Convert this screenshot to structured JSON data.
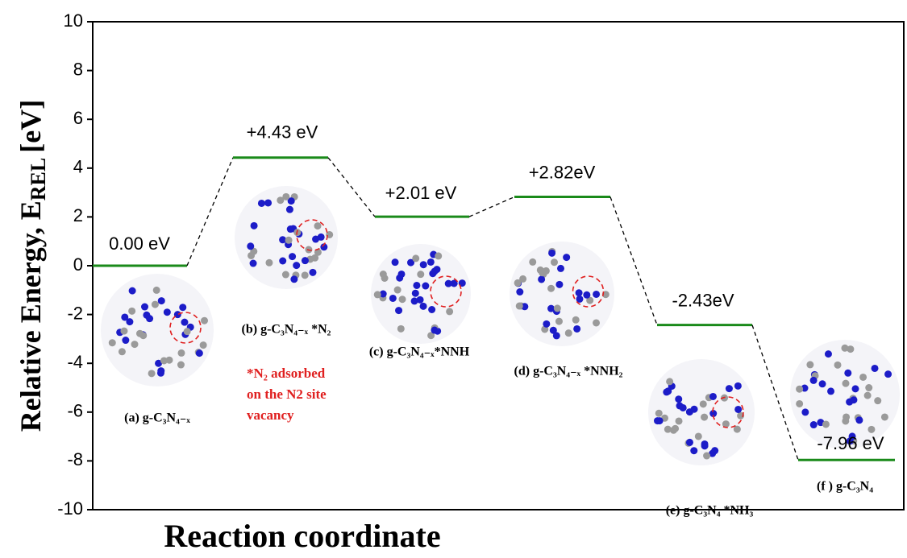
{
  "chart_data": {
    "type": "levels",
    "y_label": [
      "Relative Energy, E",
      "REL",
      "[eV]"
    ],
    "x_label": "Reaction coordinate",
    "categories": [
      "(a) g-C₃N₄₋ₓ",
      "(b) g-C₃N₄₋ₓ *N₂",
      "(c) g-C₃N₄₋ₓ*NNH",
      "(d) g-C₃N₄₋ₓ *NNH₂",
      "(e) g-C₃N₄ *NH₃",
      "(f ) g-C₃N₄"
    ],
    "values": [
      0.0,
      4.43,
      2.01,
      2.82,
      -2.43,
      -7.96
    ],
    "value_labels": [
      "0.00 eV",
      "+4.43 eV",
      "+2.01 eV",
      "+2.82eV",
      "-2.43eV",
      "-7.96 eV"
    ],
    "color": "#1a8a1a",
    "annotation": [
      "*N₂ adsorbed",
      "on  the N2 site",
      "vacancy"
    ],
    "ylim": [
      -10,
      10
    ],
    "yticks": [
      -10,
      -8,
      -6,
      -4,
      -2,
      0,
      2,
      4,
      6,
      8,
      10
    ]
  }
}
